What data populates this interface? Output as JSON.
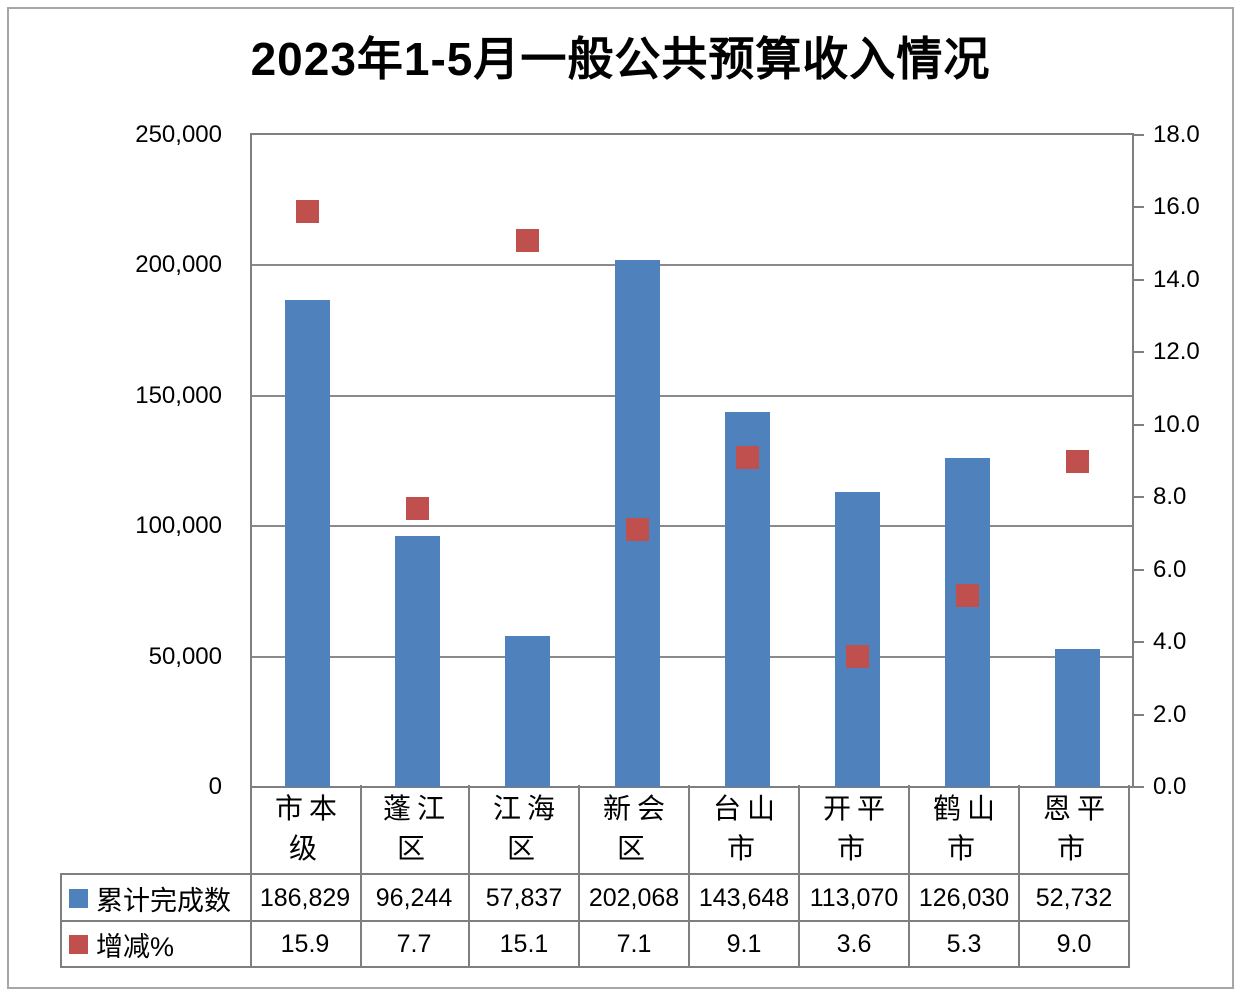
{
  "chart_data": {
    "type": "bar",
    "title": "2023年1-5月一般公共预算收入情况",
    "categories": [
      "市本级",
      "蓬江区",
      "江海区",
      "新会区",
      "台山市",
      "开平市",
      "鹤山市",
      "恩平市"
    ],
    "series": [
      {
        "name": "累计完成数",
        "type": "bar",
        "axis": "left",
        "color": "#4f81bd",
        "values": [
          186829,
          96244,
          57837,
          202068,
          143648,
          113070,
          126030,
          52732
        ]
      },
      {
        "name": "增减%",
        "type": "scatter",
        "marker": "square",
        "axis": "right",
        "color": "#c0504d",
        "values": [
          15.9,
          7.7,
          15.1,
          7.1,
          9.1,
          3.6,
          5.3,
          9.0
        ]
      }
    ],
    "left_axis": {
      "min": 0,
      "max": 250000,
      "step": 50000,
      "tick_labels": [
        "250,000",
        "200,000",
        "150,000",
        "100,000",
        "50,000",
        "0"
      ]
    },
    "right_axis": {
      "min": 0,
      "max": 18,
      "step": 2,
      "tick_labels": [
        "18.0",
        "16.0",
        "14.0",
        "12.0",
        "10.0",
        "8.0",
        "6.0",
        "4.0",
        "2.0",
        "0.0"
      ]
    },
    "grid": "horizontal-major-left-axis",
    "legend_position": "data-table-left-column"
  },
  "table": {
    "rows": [
      {
        "label": "累计完成数",
        "key_color": "#4f81bd",
        "cells": [
          "186,829",
          "96,244",
          "57,837",
          "202,068",
          "143,648",
          "113,070",
          "126,030",
          "52,732"
        ]
      },
      {
        "label": "增减%",
        "key_color": "#c0504d",
        "cells": [
          "15.9",
          "7.7",
          "15.1",
          "7.1",
          "9.1",
          "3.6",
          "5.3",
          "9.0"
        ]
      }
    ]
  },
  "colors": {
    "bar": "#4f81bd",
    "marker": "#c0504d",
    "gridline": "#8a8a8a",
    "border": "#7f7f7f",
    "outer_frame": "#a6a6a6"
  }
}
